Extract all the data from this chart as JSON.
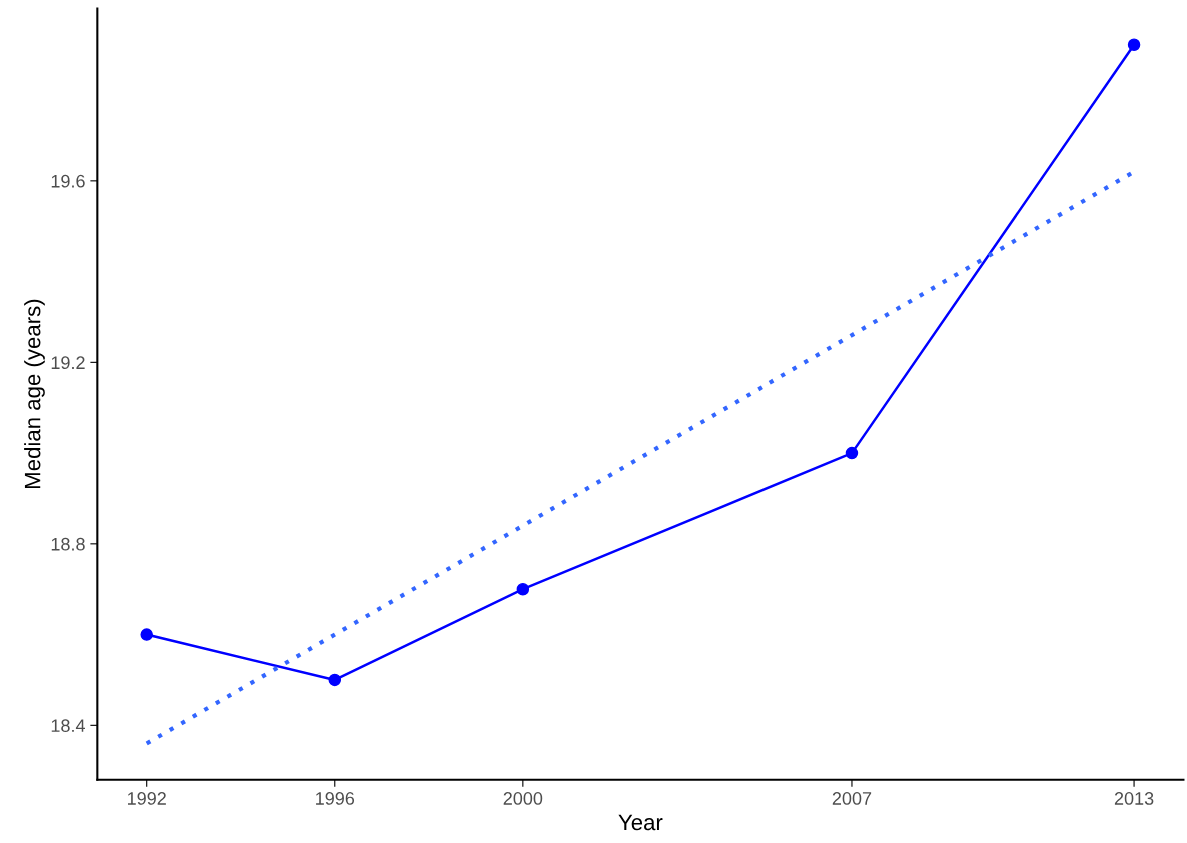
{
  "chart_data": {
    "type": "line",
    "xlabel": "Year",
    "ylabel": "Median age (years)",
    "xlim": [
      1990.95,
      2014.05
    ],
    "xticks": [
      1992,
      1996,
      2000,
      2007,
      2013
    ],
    "ylim": [
      18.28,
      19.98
    ],
    "yticks": [
      18.4,
      18.8,
      19.2,
      19.6
    ],
    "grid": false,
    "legend": false,
    "series": [
      {
        "color": "#0000ff",
        "marker": "circle",
        "line_style": "solid",
        "x": [
          1992,
          1996,
          2000,
          2007,
          2013
        ],
        "values": [
          18.6,
          18.5,
          18.7,
          19.0,
          19.9
        ]
      },
      {
        "color": "#3366ff",
        "marker": "none",
        "line_style": "dotted",
        "x": [
          1992,
          2013
        ],
        "values": [
          18.36,
          19.62
        ]
      }
    ]
  }
}
